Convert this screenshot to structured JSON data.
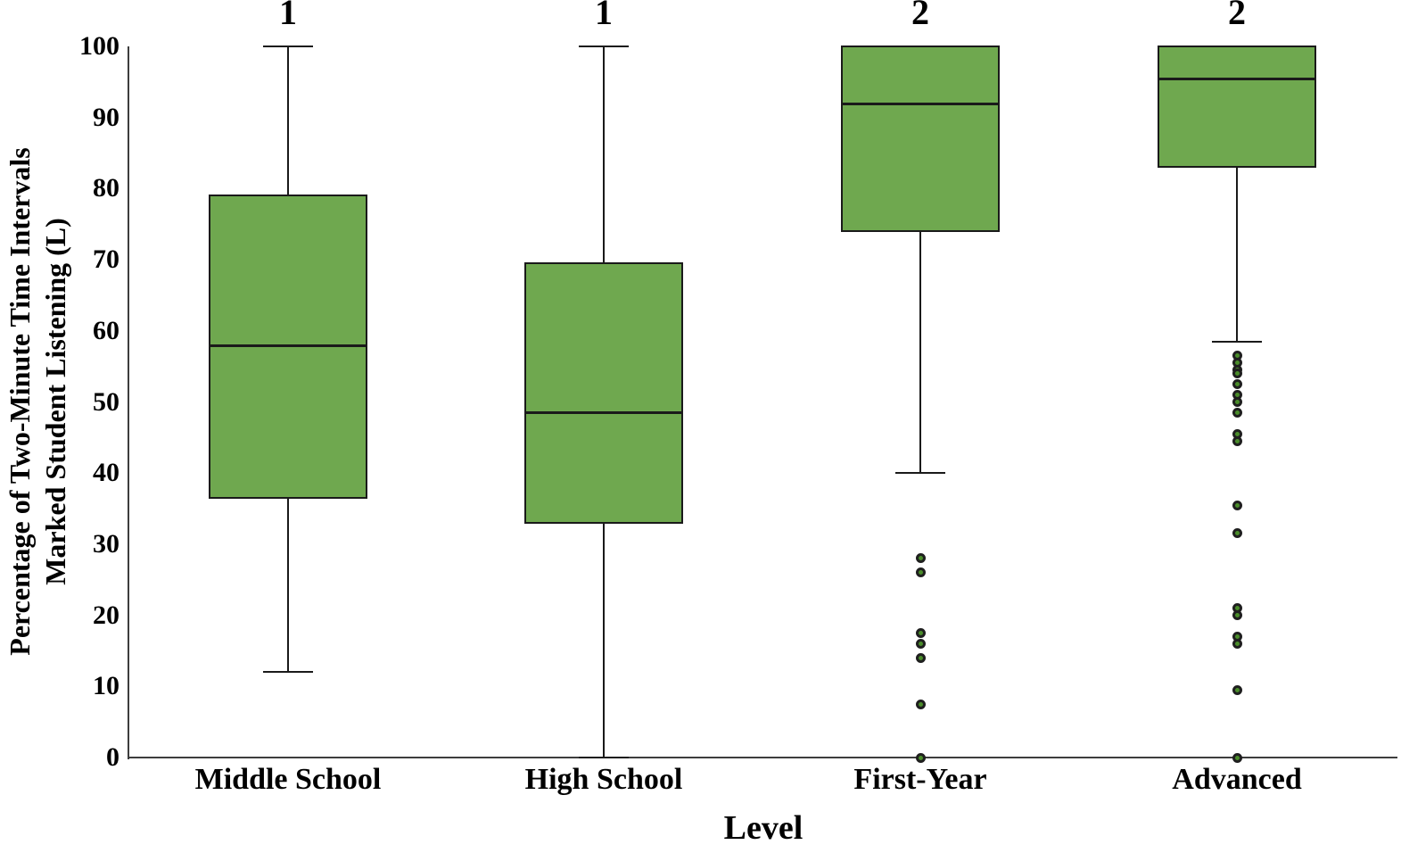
{
  "chart_data": {
    "type": "boxplot",
    "title": "",
    "xlabel": "Level",
    "ylabel_lines": [
      "Percentage of Two-Minute Time Intervals",
      "Marked Student Listening (L)"
    ],
    "ylim": [
      0,
      100
    ],
    "yticks": [
      100,
      90,
      80,
      70,
      60,
      50,
      40,
      30,
      20,
      10,
      0
    ],
    "grid": false,
    "legend": null,
    "categories": [
      "Middle School",
      "High School",
      "First-Year",
      "Advanced"
    ],
    "series": [
      {
        "category": "Middle School",
        "group_label": "1",
        "q1": 36.5,
        "median": 58,
        "q3": 79,
        "whisker_low": 12,
        "whisker_high": 100,
        "outliers": []
      },
      {
        "category": "High School",
        "group_label": "1",
        "q1": 33,
        "median": 48.5,
        "q3": 69.5,
        "whisker_low": 0,
        "whisker_high": 100,
        "outliers": []
      },
      {
        "category": "First-Year",
        "group_label": "2",
        "q1": 74,
        "median": 92,
        "q3": 100,
        "whisker_low": 40,
        "whisker_high": 100,
        "outliers": [
          28,
          26,
          17.5,
          16,
          14,
          7.5,
          0
        ]
      },
      {
        "category": "Advanced",
        "group_label": "2",
        "q1": 83,
        "median": 95.5,
        "q3": 100,
        "whisker_low": 58.5,
        "whisker_high": 100,
        "outliers": [
          56.5,
          55.5,
          54.5,
          54,
          52.5,
          51,
          50,
          48.5,
          45.5,
          44.5,
          35.5,
          31.5,
          21,
          20,
          17,
          16,
          9.5,
          0
        ]
      }
    ],
    "colors": {
      "box_fill": "#6FA84F",
      "box_stroke": "#1a1a1a",
      "axis": "#3d3d3d",
      "outlier_fill": "#4a8c2a",
      "outlier_stroke": "#1f1f1f",
      "text": "#000000"
    }
  }
}
